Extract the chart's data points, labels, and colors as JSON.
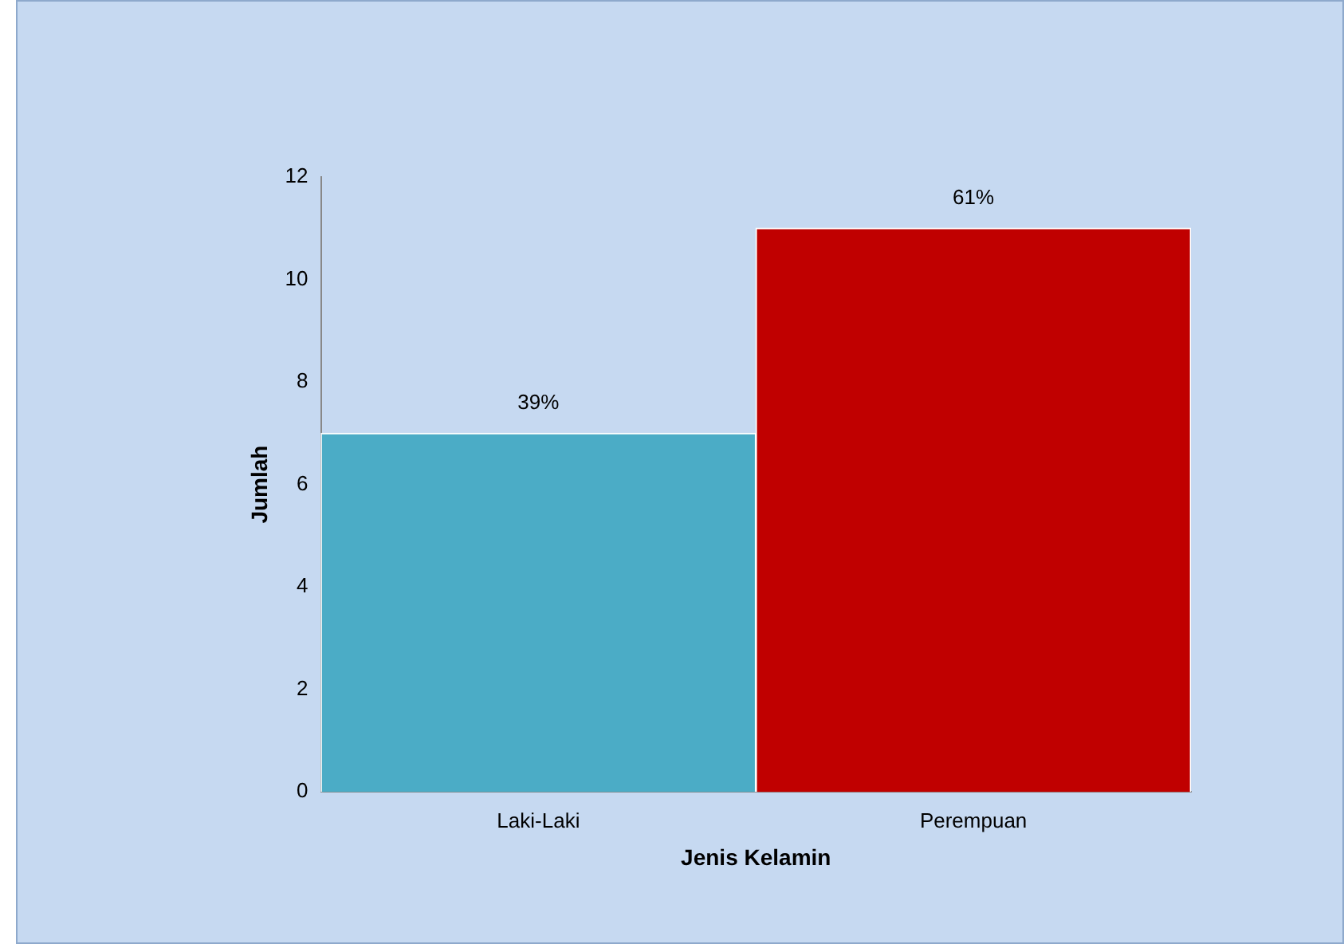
{
  "chart_data": {
    "type": "bar",
    "xlabel": "Jenis Kelamin",
    "ylabel": "Jumlah",
    "categories": [
      "Laki-Laki",
      "Perempuan"
    ],
    "values": [
      7,
      11
    ],
    "colors": [
      "#4bacc6",
      "#c00000"
    ],
    "annotations": [
      {
        "text": "39%",
        "x": "Laki-Laki",
        "y": 7
      },
      {
        "text": "61%",
        "x": "Perempuan",
        "y": 11
      }
    ],
    "ylim": [
      0,
      12
    ],
    "yticks": [
      0,
      2,
      4,
      6,
      8,
      10,
      12
    ],
    "grid": false,
    "legend": false
  }
}
